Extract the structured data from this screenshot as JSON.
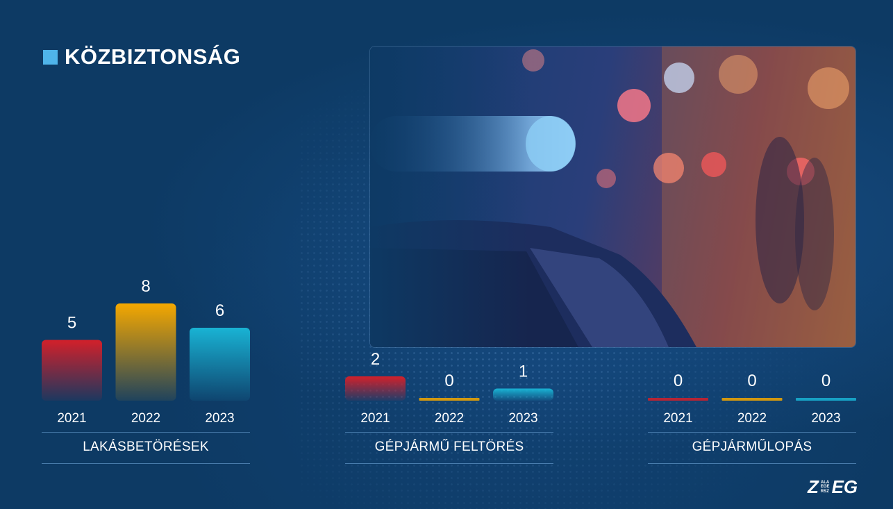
{
  "page": {
    "title": "KÖZBIZTONSÁG"
  },
  "colors": {
    "background": "#0d3a64",
    "accent": "#4fb4ea",
    "year_2021": "#d2202a",
    "year_2022": "#f5a800",
    "year_2023": "#19b3d4"
  },
  "logo": {
    "left": "Z",
    "small": [
      "ALA",
      "EGE",
      "RSZ"
    ],
    "right": "EG"
  },
  "chart_data": [
    {
      "type": "bar",
      "title": "LAKÁSBETÖRÉSEK",
      "categories": [
        "2021",
        "2022",
        "2023"
      ],
      "values": [
        5,
        8,
        6
      ],
      "colors": [
        "#d2202a",
        "#f5a800",
        "#19b3d4"
      ],
      "ylim": [
        0,
        8
      ],
      "grid": false
    },
    {
      "type": "bar",
      "title": "GÉPJÁRMŰ FELTÖRÉS",
      "categories": [
        "2021",
        "2022",
        "2023"
      ],
      "values": [
        2,
        0,
        1
      ],
      "colors": [
        "#d2202a",
        "#f5a800",
        "#19b3d4"
      ],
      "ylim": [
        0,
        8
      ],
      "grid": false
    },
    {
      "type": "bar",
      "title": "GÉPJÁRMŰLOPÁS",
      "categories": [
        "2021",
        "2022",
        "2023"
      ],
      "values": [
        0,
        0,
        0
      ],
      "colors": [
        "#d2202a",
        "#f5a800",
        "#19b3d4"
      ],
      "ylim": [
        0,
        8
      ],
      "grid": false
    }
  ]
}
